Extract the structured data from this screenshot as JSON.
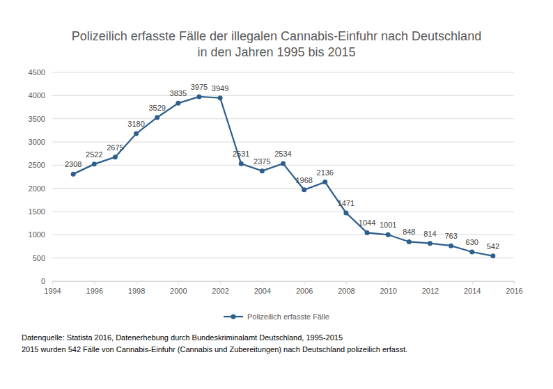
{
  "chart_data": {
    "type": "line",
    "title": "Polizeilich erfasste Fälle der illegalen Cannabis-Einfuhr nach Deutschland",
    "subtitle": "in den Jahren 1995 bis 2015",
    "x": [
      1995,
      1996,
      1997,
      1998,
      1999,
      2000,
      2001,
      2002,
      2003,
      2004,
      2005,
      2006,
      2007,
      2008,
      2009,
      2010,
      2011,
      2012,
      2013,
      2014,
      2015
    ],
    "series": [
      {
        "name": "Polizeilich erfasste Fälle",
        "color": "#2e5f8c",
        "marker": "circle",
        "line_style": "solid",
        "values": [
          2308,
          2522,
          2675,
          3180,
          3529,
          3835,
          3975,
          3949,
          2531,
          2375,
          2534,
          1968,
          2136,
          1471,
          1044,
          1001,
          848,
          814,
          763,
          630,
          542
        ]
      }
    ],
    "xlim": [
      1994,
      2016
    ],
    "xticks": [
      1994,
      1996,
      1998,
      2000,
      2002,
      2004,
      2006,
      2008,
      2010,
      2012,
      2014,
      2016
    ],
    "ylim": [
      0,
      4500
    ],
    "yticks": [
      0,
      500,
      1000,
      1500,
      2000,
      2500,
      3000,
      3500,
      4000,
      4500
    ],
    "grid": true,
    "data_labels": true,
    "legend": "bottom",
    "annotations": [
      "Datenquelle: Statista 2016, Datenerhebung durch Bundeskriminalamt Deutschland, 1995-2015",
      "2015 wurden 542 Fälle von Cannabis-Einfuhr (Cannabis und Zubereitungen) nach Deutschland polizeilich erfasst."
    ]
  }
}
